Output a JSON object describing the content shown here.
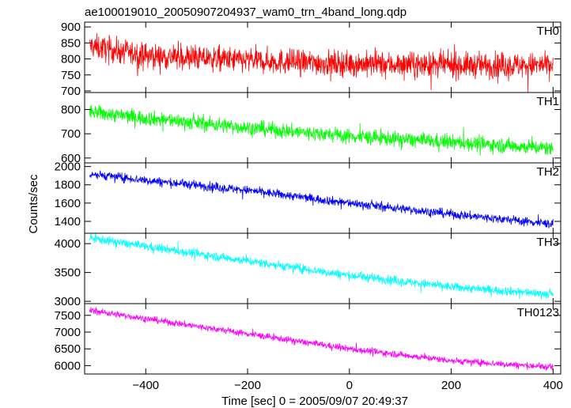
{
  "chart_data": {
    "type": "line",
    "title": "ae100019010_20050907204937_wam0_trn_4band_long.qdp",
    "xlabel": "Time [sec] 0 = 2005/09/07 20:49:37",
    "ylabel": "Counts/sec",
    "xlim": [
      -520,
      415
    ],
    "x_ticks": [
      -400,
      -200,
      0,
      200,
      400
    ],
    "x_tick_labels": [
      "−400",
      "−200",
      "0",
      "200",
      "400"
    ],
    "x_range_data": [
      -510,
      400
    ],
    "grid": false,
    "panels": [
      {
        "name": "TH0",
        "color": "#ff0000",
        "ylim": [
          695,
          915
        ],
        "yticks": [
          700,
          750,
          800,
          850,
          900
        ],
        "trend": [
          [
            -510,
            840
          ],
          [
            -400,
            810
          ],
          [
            -200,
            795
          ],
          [
            0,
            785
          ],
          [
            200,
            780
          ],
          [
            400,
            780
          ]
        ],
        "noise": 28
      },
      {
        "name": "TH1",
        "color": "#00ff00",
        "ylim": [
          580,
          870
        ],
        "yticks": [
          600,
          700,
          800
        ],
        "trend": [
          [
            -510,
            790
          ],
          [
            -400,
            765
          ],
          [
            -200,
            725
          ],
          [
            0,
            690
          ],
          [
            200,
            665
          ],
          [
            400,
            640
          ]
        ],
        "noise": 22
      },
      {
        "name": "TH2",
        "color": "#0000ff",
        "ylim": [
          1270,
          2040
        ],
        "yticks": [
          1400,
          1600,
          1800,
          2000
        ],
        "trend": [
          [
            -510,
            1920
          ],
          [
            -400,
            1850
          ],
          [
            -200,
            1740
          ],
          [
            0,
            1600
          ],
          [
            200,
            1480
          ],
          [
            400,
            1370
          ]
        ],
        "noise": 35
      },
      {
        "name": "TH3",
        "color": "#00ffff",
        "ylim": [
          2960,
          4180
        ],
        "yticks": [
          3000,
          3500,
          4000
        ],
        "trend": [
          [
            -510,
            4100
          ],
          [
            -400,
            3950
          ],
          [
            -200,
            3700
          ],
          [
            0,
            3450
          ],
          [
            200,
            3250
          ],
          [
            400,
            3120
          ]
        ],
        "noise": 55
      },
      {
        "name": "TH0123",
        "color": "#ff00ff",
        "ylim": [
          5750,
          7850
        ],
        "yticks": [
          6000,
          6500,
          7000,
          7500
        ],
        "trend": [
          [
            -510,
            7650
          ],
          [
            -400,
            7400
          ],
          [
            -200,
            6950
          ],
          [
            0,
            6500
          ],
          [
            200,
            6150
          ],
          [
            400,
            5950
          ]
        ],
        "noise": 70
      }
    ]
  }
}
